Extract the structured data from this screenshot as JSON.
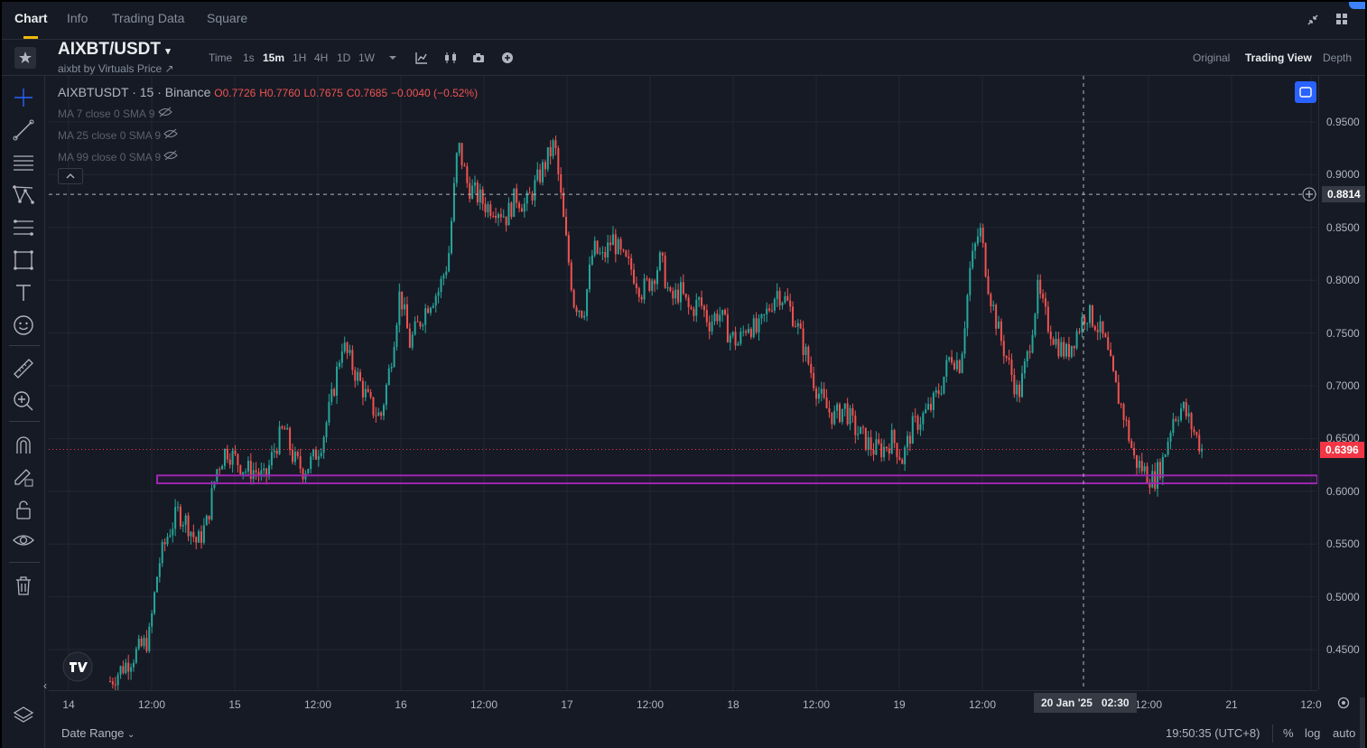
{
  "tabs": [
    {
      "label": "Chart",
      "active": true
    },
    {
      "label": "Info",
      "active": false
    },
    {
      "label": "Trading Data",
      "active": false
    },
    {
      "label": "Square",
      "active": false
    }
  ],
  "header": {
    "pair": "AIXBT/USDT",
    "subtitle": "aixbt by Virtuals Price ↗",
    "timeframe_label": "Time",
    "timeframes": [
      "1s",
      "15m",
      "1H",
      "4H",
      "1D",
      "1W"
    ],
    "active_timeframe": "15m",
    "views": [
      "Original",
      "Trading View",
      "Depth"
    ],
    "active_view": "Trading View"
  },
  "legend": {
    "symbol": "AIXBTUSDT · 15 · Binance",
    "open": "O0.7726",
    "high": "H0.7760",
    "low": "L0.7675",
    "close": "C0.7685",
    "change": "−0.0040 (−0.52%)",
    "ma": [
      "MA 7 close 0 SMA 9",
      "MA 25 close 0 SMA 9",
      "MA 99 close 0 SMA 9"
    ]
  },
  "price_axis": {
    "ticks": [
      "0.9500",
      "0.9000",
      "0.8500",
      "0.8000",
      "0.7500",
      "0.7000",
      "0.6500",
      "0.6000",
      "0.5500",
      "0.5000",
      "0.4500"
    ],
    "crosshair_price": "0.8814",
    "last_price": "0.6396"
  },
  "time_axis": {
    "ticks": [
      "14",
      "12:00",
      "15",
      "12:00",
      "16",
      "12:00",
      "17",
      "12:00",
      "18",
      "12:00",
      "19",
      "12:00",
      "12:00",
      "21",
      "12:0"
    ],
    "crosshair_label": "20 Jan '25   02:30"
  },
  "footer": {
    "date_range": "Date Range",
    "clock": "19:50:35 (UTC+8)",
    "percent": "%",
    "log": "log",
    "auto": "auto"
  },
  "colors": {
    "up": "#26a69a",
    "down": "#ef5350",
    "last_price_bg": "#f23645",
    "accent": "#f0b90b",
    "zone": "#9c27b0"
  },
  "chart_data": {
    "type": "candlestick",
    "series": [
      {
        "name": "AIXBTUSDT",
        "values": [
          0.42,
          0.43,
          0.44,
          0.45,
          0.46,
          0.53,
          0.56,
          0.58,
          0.57,
          0.55,
          0.57,
          0.62,
          0.64,
          0.63,
          0.62,
          0.62,
          0.61,
          0.64,
          0.66,
          0.63,
          0.62,
          0.63,
          0.65,
          0.69,
          0.74,
          0.72,
          0.7,
          0.68,
          0.67,
          0.72,
          0.79,
          0.74,
          0.76,
          0.78,
          0.79,
          0.82,
          0.93,
          0.89,
          0.88,
          0.87,
          0.87,
          0.86,
          0.88,
          0.87,
          0.89,
          0.91,
          0.93,
          0.85,
          0.78,
          0.77,
          0.83,
          0.82,
          0.84,
          0.82,
          0.81,
          0.79,
          0.8,
          0.82,
          0.78,
          0.79,
          0.77,
          0.78,
          0.76,
          0.77,
          0.75,
          0.74,
          0.76,
          0.75,
          0.77,
          0.79,
          0.78,
          0.76,
          0.73,
          0.7,
          0.68,
          0.67,
          0.68,
          0.66,
          0.65,
          0.64,
          0.64,
          0.65,
          0.63,
          0.66,
          0.67,
          0.68,
          0.7,
          0.73,
          0.72,
          0.81,
          0.85,
          0.79,
          0.75,
          0.72,
          0.69,
          0.73,
          0.79,
          0.76,
          0.74,
          0.73,
          0.75,
          0.77,
          0.76,
          0.74,
          0.7,
          0.67,
          0.63,
          0.62,
          0.61,
          0.63,
          0.67,
          0.68,
          0.66,
          0.64
        ]
      }
    ],
    "x_start": "14",
    "x_end": "21",
    "ylim": [
      0.41,
      0.98
    ],
    "crosshair": {
      "price": 0.8814,
      "time": "20 Jan '25 02:30"
    },
    "support_zone": [
      0.6075,
      0.615
    ],
    "last_price": 0.6396
  }
}
